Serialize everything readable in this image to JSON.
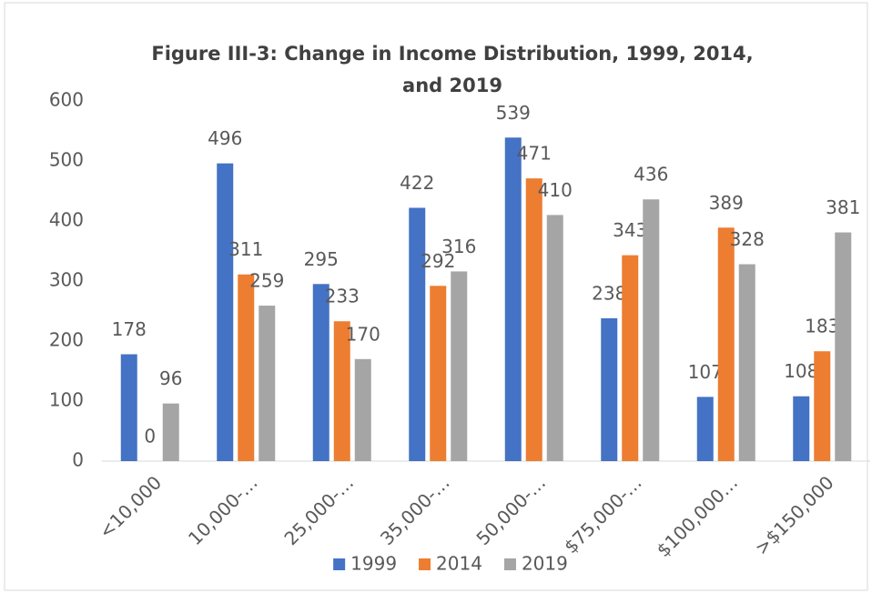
{
  "chart_data": {
    "type": "bar",
    "title": "Figure III-3: Change in Income Distribution, 1999, 2014, and 2019",
    "categories": [
      "<10,000",
      "10,000-…",
      "25,000-…",
      "35,000-…",
      "50,000-…",
      "$75,000-…",
      "$100,000…",
      ">$150,000"
    ],
    "series": [
      {
        "name": "1999",
        "color": "#4472c4",
        "values": [
          178,
          496,
          295,
          422,
          539,
          238,
          107,
          108
        ]
      },
      {
        "name": "2014",
        "color": "#ed7d31",
        "values": [
          0,
          311,
          233,
          292,
          471,
          343,
          389,
          183
        ]
      },
      {
        "name": "2019",
        "color": "#a5a5a5",
        "values": [
          96,
          259,
          170,
          316,
          410,
          436,
          328,
          381
        ]
      }
    ],
    "ylim": [
      0,
      600
    ],
    "yticks": [
      0,
      100,
      200,
      300,
      400,
      500,
      600
    ],
    "grid": false,
    "legend": "bottom"
  }
}
